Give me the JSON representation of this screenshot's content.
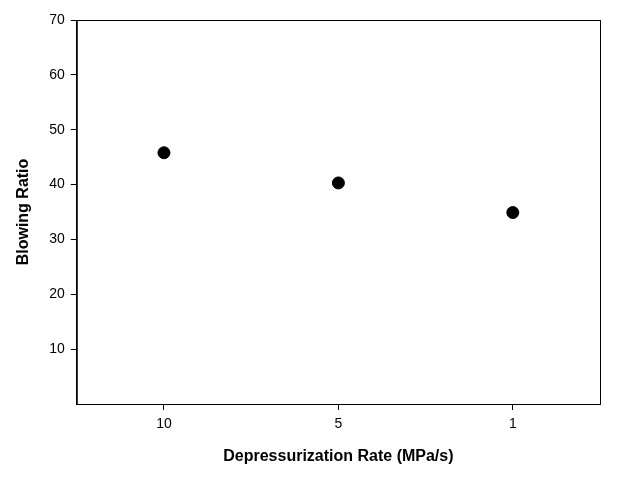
{
  "chart_data": {
    "type": "scatter",
    "x_label": "Depressurization Rate (MPa/s)",
    "y_label": "Blowing Ratio",
    "categories": [
      "10",
      "5",
      "1"
    ],
    "values": [
      45.8,
      40.3,
      34.9
    ],
    "color": "#000000",
    "marker": "circle",
    "ylim": [
      0,
      70
    ],
    "yticks": [
      10,
      20,
      30,
      40,
      50,
      60,
      70
    ],
    "grid": false
  }
}
